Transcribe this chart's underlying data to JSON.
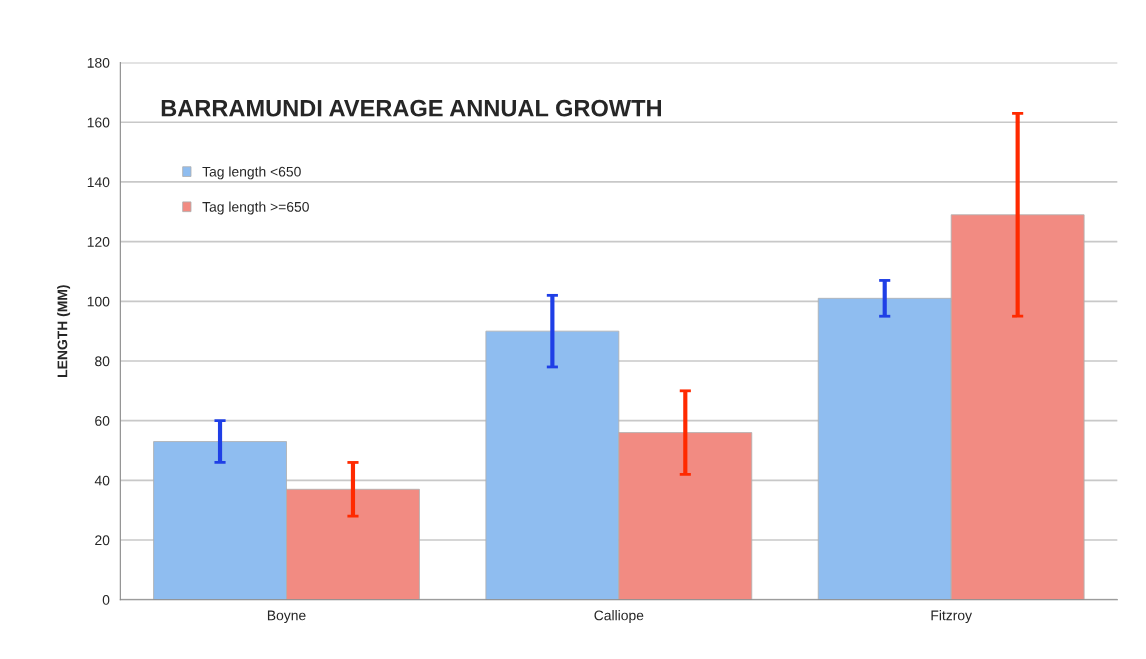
{
  "chart_data": {
    "type": "bar",
    "title": "BARRAMUNDI AVERAGE ANNUAL GROWTH",
    "ylabel": "LENGTH (MM)",
    "categories": [
      "Boyne",
      "Calliope",
      "Fitzroy"
    ],
    "series": [
      {
        "name": "Tag length <650",
        "color": "#8fbdf0",
        "values": [
          53,
          90,
          101
        ],
        "errors": [
          7,
          12,
          6
        ]
      },
      {
        "name": "Tag length >=650",
        "color": "#f28b82",
        "values": [
          37,
          56,
          129
        ],
        "errors": [
          9,
          14,
          34
        ]
      }
    ],
    "ylim": [
      0,
      180
    ],
    "yticks": [
      0,
      20,
      40,
      60,
      80,
      100,
      120,
      140,
      160,
      180
    ],
    "grid": "y",
    "legend": "top left"
  }
}
